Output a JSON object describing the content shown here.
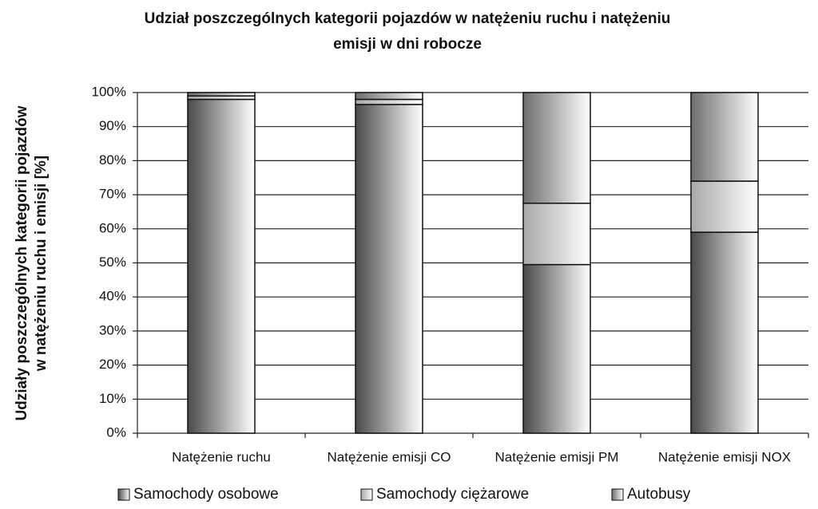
{
  "chart_data": {
    "type": "stacked_bar",
    "title": [
      "Udział poszczególnych kategorii pojazdów w natężeniu ruchu i natężeniu",
      "emisji w dni robocze"
    ],
    "y_label": [
      "Udziały poszczególnych kategorii pojazdów",
      "w natężeniu ruchu i emisji [%]"
    ],
    "categories": [
      "Natężenie ruchu",
      "Natężenie emisji CO",
      "Natężenie emisji PM",
      "Natężenie emisji NOX"
    ],
    "series": [
      {
        "name": "Samochody osobowe",
        "color": "#4a4a4a",
        "values": [
          98,
          96.5,
          49.5,
          59
        ]
      },
      {
        "name": "Samochody ciężarowe",
        "color": "#a8a8a8",
        "values": [
          1,
          1.5,
          18,
          15
        ]
      },
      {
        "name": "Autobusy",
        "color": "#6e6e6e",
        "values": [
          1,
          2,
          32.5,
          26
        ]
      }
    ],
    "ylim": [
      0,
      100
    ],
    "yticks": [
      {
        "value": 0,
        "label": "0%"
      },
      {
        "value": 10,
        "label": "10%"
      },
      {
        "value": 20,
        "label": "20%"
      },
      {
        "value": 30,
        "label": "30%"
      },
      {
        "value": 40,
        "label": "40%"
      },
      {
        "value": 50,
        "label": "50%"
      },
      {
        "value": 60,
        "label": "60%"
      },
      {
        "value": 70,
        "label": "70%"
      },
      {
        "value": 80,
        "label": "80%"
      },
      {
        "value": 90,
        "label": "90%"
      },
      {
        "value": 100,
        "label": "100%"
      }
    ],
    "grid": true,
    "legend": "bottom"
  }
}
